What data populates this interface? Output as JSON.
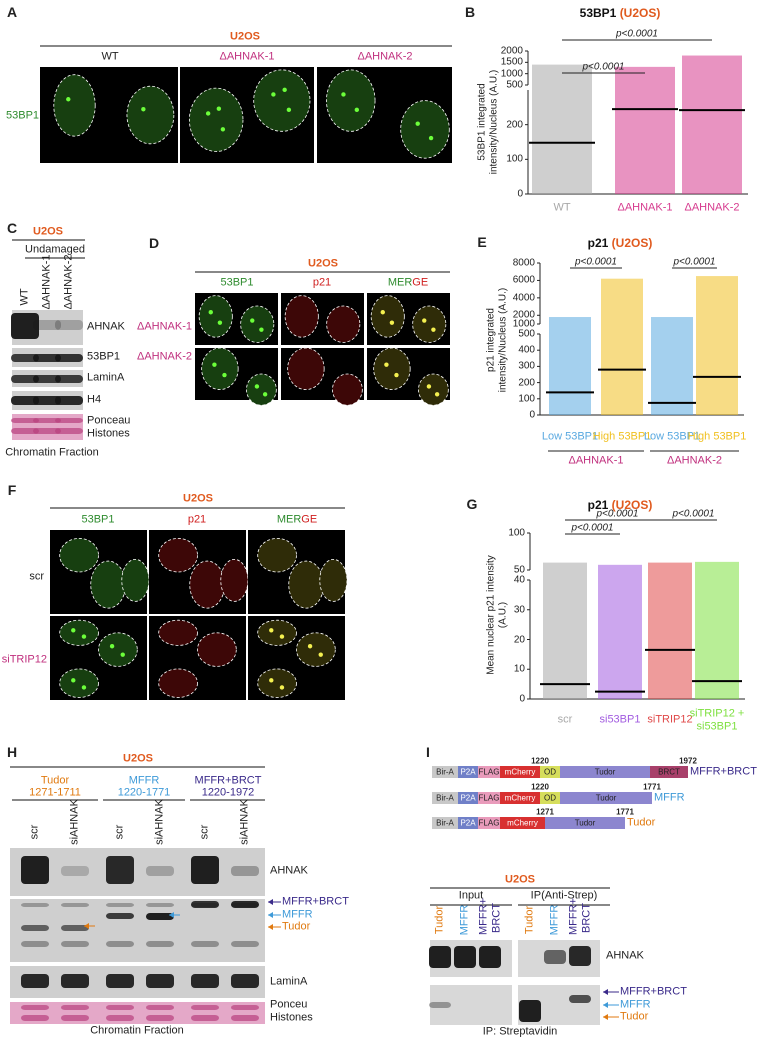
{
  "panels": {
    "A": {
      "label": "A",
      "cell_line": "U2OS",
      "columns": [
        "WT",
        "ΔAHNAK-1",
        "ΔAHNAK-2"
      ],
      "row_label": "53BP1"
    },
    "C": {
      "label": "C",
      "cell_line": "U2OS",
      "condition": "Undamaged",
      "lanes": [
        "WT",
        "ΔAHNAK-1",
        "ΔAHNAK-2"
      ],
      "blots": [
        "AHNAK",
        "53BP1",
        "LaminA",
        "H4",
        "Ponceau Histones"
      ],
      "footer": "Chromatin Fraction"
    },
    "D": {
      "label": "D",
      "cell_line": "U2OS",
      "columns": [
        "53BP1",
        "p21"
      ],
      "merge": [
        "MER",
        "GE"
      ],
      "rows": [
        "ΔAHNAK-1",
        "ΔAHNAK-2"
      ]
    },
    "F": {
      "label": "F",
      "cell_line": "U2OS",
      "columns": [
        "53BP1",
        "p21"
      ],
      "merge": [
        "MER",
        "GE"
      ],
      "rows": [
        "scr",
        "siTRIP12"
      ]
    },
    "H": {
      "label": "H",
      "cell_line": "U2OS",
      "constructs": [
        {
          "name": "Tudor",
          "range": "1271-1711"
        },
        {
          "name": "MFFR",
          "range": "1220-1771"
        },
        {
          "name": "MFFR+BRCT",
          "range": "1220-1972"
        }
      ],
      "lanes": [
        "scr",
        "siAHNAK",
        "scr",
        "siAHNAK",
        "scr",
        "siAHNAK"
      ],
      "blots": [
        "AHNAK",
        "LaminA",
        "Ponceu Histones"
      ],
      "bands": [
        "MFFR+BRCT",
        "MFFR",
        "Tudor"
      ],
      "footer": "Chromatin Fraction"
    },
    "I": {
      "label": "I",
      "constructs": [
        {
          "domains": [
            "Bir-A",
            "P2A",
            "FLAG",
            "mCherry",
            "OD",
            "Tudor",
            "BRCT"
          ],
          "start": 1220,
          "end": 1972,
          "name": "MFFR+BRCT"
        },
        {
          "domains": [
            "Bir-A",
            "P2A",
            "FLAG",
            "mCherry",
            "OD",
            "Tudor"
          ],
          "start": 1220,
          "end": 1771,
          "name": "MFFR"
        },
        {
          "domains": [
            "Bir-A",
            "P2A",
            "FLAG",
            "mCherry",
            "Tudor"
          ],
          "start": 1271,
          "end": 1771,
          "name": "Tudor"
        }
      ],
      "cell_line": "U2OS",
      "groups": [
        "Input",
        "IP(Anti-Strep)"
      ],
      "lanes": [
        "Tudor",
        "MFFR",
        "MFFR+ BRCT",
        "Tudor",
        "MFFR",
        "MFFR+ BRCT"
      ],
      "blots": [
        "AHNAK"
      ],
      "bands": [
        "MFFR+BRCT",
        "MFFR",
        "Tudor"
      ],
      "footer": "IP: Streptavidin"
    }
  },
  "chart_data": [
    {
      "type": "dot",
      "panel_label": "B",
      "title": "53BP1",
      "title_suffix": "(U2OS)",
      "ylabel": "53BP1 integrated intensity/Nucleus (A.U.)",
      "categories": [
        "WT",
        "ΔAHNAK-1",
        "ΔAHNAK-2"
      ],
      "colors": [
        "#a8a8a8",
        "#d63a8e",
        "#d63a8e"
      ],
      "values": [
        148,
        245,
        242
      ],
      "min": [
        0,
        0,
        0
      ],
      "max": [
        1400,
        1300,
        1800
      ],
      "ylim_lower": [
        0,
        300
      ],
      "ylim_upper": [
        500,
        2000
      ],
      "yticks": [
        0,
        100,
        200,
        500,
        1000,
        1500,
        2000
      ],
      "annotations": [
        "p<0.0001",
        "p<0.0001"
      ]
    },
    {
      "type": "dot",
      "panel_label": "E",
      "title": "p21",
      "title_suffix": "(U2OS)",
      "ylabel": "p21 integrated intensity/Nucleus (A.U.)",
      "categories": [
        "Low 53BP1",
        "High 53BP1",
        "Low 53BP1",
        "High 53BP1"
      ],
      "colors": [
        "#5aa9e0",
        "#f0c020",
        "#5aa9e0",
        "#f0c020"
      ],
      "values": [
        140,
        280,
        75,
        235
      ],
      "min": [
        0,
        0,
        0,
        0
      ],
      "max": [
        1800,
        6200,
        1800,
        6500
      ],
      "ylim_lower": [
        0,
        500
      ],
      "ylim_upper": [
        1000,
        8000
      ],
      "yticks": [
        0,
        100,
        200,
        300,
        400,
        500,
        1000,
        2000,
        4000,
        6000,
        8000
      ],
      "groups": [
        "ΔAHNAK-1",
        "ΔAHNAK-2"
      ],
      "annotations": [
        "p<0.0001",
        "p<0.0001"
      ]
    },
    {
      "type": "dot",
      "panel_label": "G",
      "title": "p21",
      "title_suffix": "(U2OS)",
      "ylabel": "Mean nuclear p21 intensity (A.U.)",
      "categories": [
        "scr",
        "si53BP1",
        "siTRIP12",
        "siTRIP12 + si53BP1"
      ],
      "colors": [
        "#a8a8a8",
        "#a25ce0",
        "#e04848",
        "#7ee040"
      ],
      "values": [
        5,
        2.5,
        16.5,
        6
      ],
      "min": [
        0,
        0,
        0,
        0
      ],
      "max": [
        60,
        57,
        60,
        61
      ],
      "ylim_lower": [
        0,
        40
      ],
      "ylim_upper": [
        50,
        100
      ],
      "yticks": [
        0,
        10,
        20,
        30,
        40,
        50,
        100
      ],
      "annotations": [
        "p<0.0001",
        "p<0.0001",
        "p<0.0001"
      ]
    }
  ]
}
